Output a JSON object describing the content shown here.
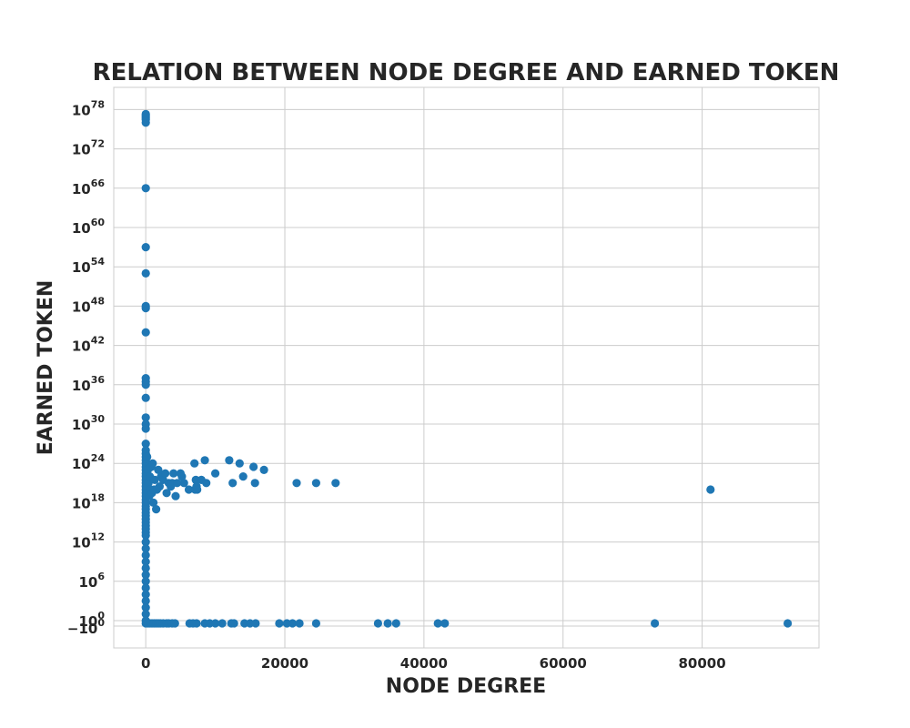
{
  "chart_data": {
    "type": "scatter",
    "title": "RELATION BETWEEN NODE DEGREE AND EARNED TOKEN",
    "xlabel": "NODE DEGREE",
    "ylabel": "EARNED TOKEN",
    "xlim": [
      -4600,
      96800
    ],
    "y_scale": "symlog",
    "grid": true,
    "legend": "none",
    "marker_color": "#1f77b4",
    "x_ticks": [
      {
        "value": 0,
        "label": "0"
      },
      {
        "value": 20000,
        "label": "20000"
      },
      {
        "value": 40000,
        "label": "40000"
      },
      {
        "value": 60000,
        "label": "60000"
      },
      {
        "value": 80000,
        "label": "80000"
      }
    ],
    "y_ticks": [
      {
        "exp": 78,
        "base": "10",
        "sign": ""
      },
      {
        "exp": 72,
        "base": "10",
        "sign": ""
      },
      {
        "exp": 66,
        "base": "10",
        "sign": ""
      },
      {
        "exp": 60,
        "base": "10",
        "sign": ""
      },
      {
        "exp": 54,
        "base": "10",
        "sign": ""
      },
      {
        "exp": 48,
        "base": "10",
        "sign": ""
      },
      {
        "exp": 42,
        "base": "10",
        "sign": ""
      },
      {
        "exp": 36,
        "base": "10",
        "sign": ""
      },
      {
        "exp": 30,
        "base": "10",
        "sign": ""
      },
      {
        "exp": 24,
        "base": "10",
        "sign": ""
      },
      {
        "exp": 18,
        "base": "10",
        "sign": ""
      },
      {
        "exp": 12,
        "base": "10",
        "sign": ""
      },
      {
        "exp": 6,
        "base": "10",
        "sign": ""
      },
      {
        "exp": 0,
        "base": "10",
        "sign": ""
      },
      {
        "exp": 0,
        "base": "10",
        "sign": "−"
      }
    ],
    "points": [
      [
        0,
        1e+77
      ],
      [
        0,
        3e+76
      ],
      [
        0,
        1e+76
      ],
      [
        0,
        5e+76
      ],
      [
        0,
        2e+77
      ],
      [
        0,
        1e+66
      ],
      [
        0,
        1e+57
      ],
      [
        0,
        1e+53
      ],
      [
        0,
        5e+47
      ],
      [
        0,
        1e+48
      ],
      [
        0,
        1e+44
      ],
      [
        0,
        1e+37
      ],
      [
        0,
        3e+36
      ],
      [
        0,
        1e+36
      ],
      [
        0,
        1e+34
      ],
      [
        0,
        1e+31
      ],
      [
        0,
        1e+30
      ],
      [
        0,
        2e+29
      ],
      [
        0,
        1e+27
      ],
      [
        0,
        1e+26
      ],
      [
        0,
        3e+25
      ],
      [
        0,
        1e+25
      ],
      [
        0,
        3e+24
      ],
      [
        0,
        1e+24
      ],
      [
        0,
        3e+23
      ],
      [
        0,
        1e+23
      ],
      [
        0,
        3e+22
      ],
      [
        0,
        1e+22
      ],
      [
        0,
        3e+21
      ],
      [
        0,
        1e+21
      ],
      [
        0,
        3e+20
      ],
      [
        0,
        1e+20
      ],
      [
        0,
        3e+19
      ],
      [
        0,
        1e+19
      ],
      [
        0,
        3e+18
      ],
      [
        0,
        1e+18
      ],
      [
        0,
        3e+17
      ],
      [
        0,
        1e+17
      ],
      [
        0,
        3e+16
      ],
      [
        0,
        1e+16
      ],
      [
        0,
        3000000000000000.0
      ],
      [
        0,
        1000000000000000.0
      ],
      [
        0,
        300000000000000.0
      ],
      [
        0,
        100000000000000.0
      ],
      [
        0,
        30000000000000.0
      ],
      [
        0,
        10000000000000.0
      ],
      [
        0,
        1000000000000.0
      ],
      [
        0,
        100000000000.0
      ],
      [
        0,
        10000000000.0
      ],
      [
        0,
        1000000000.0
      ],
      [
        0,
        100000000.0
      ],
      [
        0,
        10000000.0
      ],
      [
        0,
        1000000.0
      ],
      [
        0,
        100000.0
      ],
      [
        0,
        10000.0
      ],
      [
        0,
        1000.0
      ],
      [
        0,
        100
      ],
      [
        0,
        10
      ],
      [
        0,
        1
      ],
      [
        200,
        1e+25
      ],
      [
        300,
        1e+23
      ],
      [
        400,
        1e+21
      ],
      [
        500,
        1e+19
      ],
      [
        600,
        1e+22
      ],
      [
        700,
        1e+20
      ],
      [
        800,
        3e+23
      ],
      [
        900,
        3e+19
      ],
      [
        1000,
        1e+24
      ],
      [
        1100,
        1e+18
      ],
      [
        1200,
        1e+20
      ],
      [
        1300,
        3e+21
      ],
      [
        1500,
        1e+17
      ],
      [
        1600,
        1e+20
      ],
      [
        1800,
        1e+23
      ],
      [
        2000,
        3e+20
      ],
      [
        2200,
        1e+22
      ],
      [
        2500,
        3e+21
      ],
      [
        2800,
        3e+22
      ],
      [
        3000,
        3e+19
      ],
      [
        3300,
        1e+21
      ],
      [
        3600,
        3e+20
      ],
      [
        3800,
        1e+21
      ],
      [
        4000,
        3e+22
      ],
      [
        4300,
        1e+19
      ],
      [
        4500,
        1e+21
      ],
      [
        5000,
        3e+22
      ],
      [
        5200,
        1e+22
      ],
      [
        5500,
        1e+21
      ],
      [
        6200,
        1e+20
      ],
      [
        7000,
        1e+24
      ],
      [
        7100,
        1e+20
      ],
      [
        7200,
        3e+21
      ],
      [
        7300,
        3e+20
      ],
      [
        7400,
        1e+20
      ],
      [
        8000,
        3e+21
      ],
      [
        8500,
        3e+24
      ],
      [
        8700,
        1e+21
      ],
      [
        10000,
        3e+22
      ],
      [
        12000,
        3e+24
      ],
      [
        12500,
        1e+21
      ],
      [
        13500,
        1e+24
      ],
      [
        14000,
        1e+22
      ],
      [
        15500,
        3e+23
      ],
      [
        15700,
        1e+21
      ],
      [
        17000,
        1e+23
      ],
      [
        21700,
        1e+21
      ],
      [
        24500,
        1e+21
      ],
      [
        27300,
        1e+21
      ],
      [
        81200,
        1e+20
      ],
      [
        0,
        0
      ],
      [
        300,
        0
      ],
      [
        600,
        0
      ],
      [
        900,
        0
      ],
      [
        1200,
        0
      ],
      [
        1500,
        0
      ],
      [
        1800,
        0
      ],
      [
        2100,
        0
      ],
      [
        2500,
        0
      ],
      [
        3000,
        0
      ],
      [
        3300,
        0
      ],
      [
        3800,
        0
      ],
      [
        4200,
        0
      ],
      [
        6300,
        0
      ],
      [
        6800,
        0
      ],
      [
        7300,
        0
      ],
      [
        8500,
        0
      ],
      [
        9200,
        0
      ],
      [
        10000,
        0
      ],
      [
        11000,
        0
      ],
      [
        12300,
        0
      ],
      [
        12700,
        0
      ],
      [
        14200,
        0
      ],
      [
        15000,
        0
      ],
      [
        15800,
        0
      ],
      [
        19200,
        0
      ],
      [
        20300,
        0
      ],
      [
        21100,
        0
      ],
      [
        22100,
        0
      ],
      [
        24500,
        0
      ],
      [
        33400,
        0
      ],
      [
        34800,
        0
      ],
      [
        36000,
        0
      ],
      [
        42000,
        0
      ],
      [
        43000,
        0
      ],
      [
        73200,
        0
      ],
      [
        92300,
        0
      ]
    ]
  }
}
